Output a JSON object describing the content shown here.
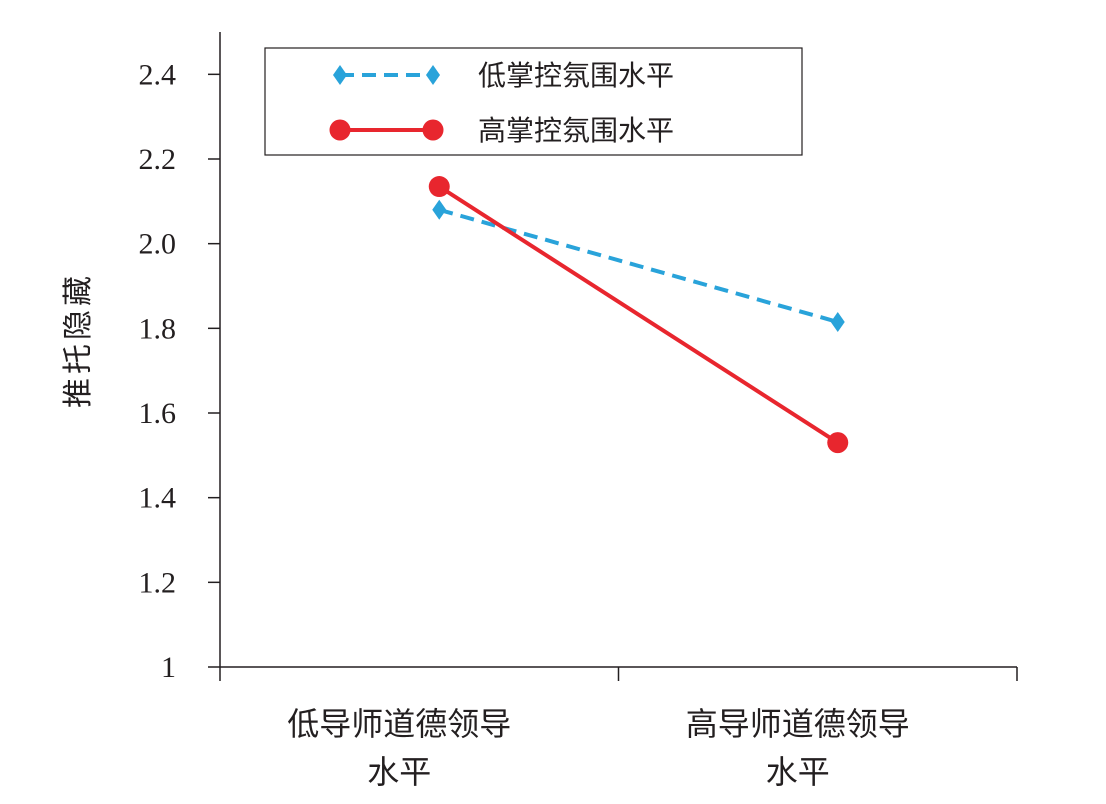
{
  "chart_data": {
    "type": "line",
    "ylabel": "推托隐藏",
    "categories": [
      [
        "低导师道德领导",
        "水平"
      ],
      [
        "高导师道德领导",
        "水平"
      ]
    ],
    "ylim": [
      1,
      2.5
    ],
    "yticks": [
      "1",
      "1.2",
      "1.4",
      "1.6",
      "1.8",
      "2.0",
      "2.2",
      "2.4"
    ],
    "legend_position": "top",
    "series": [
      {
        "name": "低掌控氛围水平",
        "values": [
          2.08,
          1.815
        ],
        "color": "#29a3da",
        "style": "dashed",
        "marker": "diamond"
      },
      {
        "name": "高掌控氛围水平",
        "values": [
          2.135,
          1.53
        ],
        "color": "#e8262e",
        "style": "solid",
        "marker": "circle"
      }
    ]
  }
}
